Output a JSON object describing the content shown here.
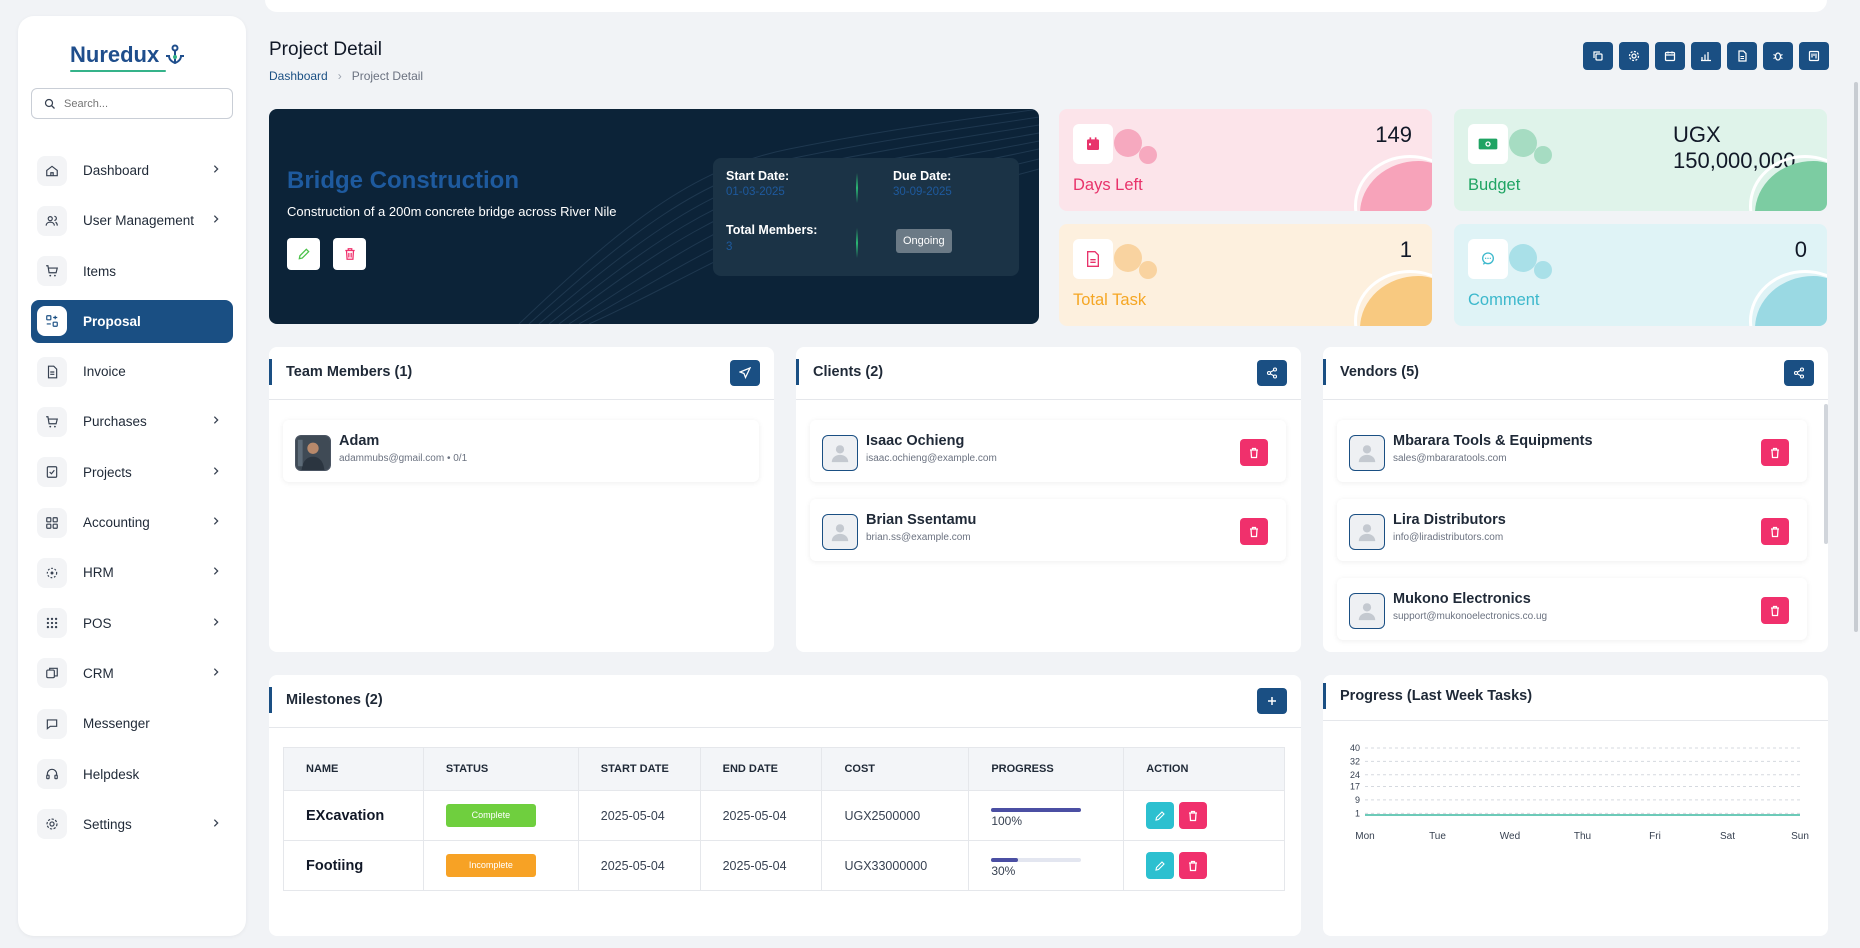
{
  "app": {
    "logo_text": "Nuredux",
    "brand_color": "#1a4f83",
    "accent_color": "#35b38a"
  },
  "search": {
    "placeholder": "Search..."
  },
  "sidebar": {
    "items": [
      {
        "label": "Dashboard",
        "icon": "home-icon",
        "has_children": true
      },
      {
        "label": "User Management",
        "icon": "users-icon",
        "has_children": true
      },
      {
        "label": "Items",
        "icon": "cart-icon",
        "has_children": false
      },
      {
        "label": "Proposal",
        "icon": "proposal-icon",
        "has_children": false,
        "active": true
      },
      {
        "label": "Invoice",
        "icon": "invoice-icon",
        "has_children": false
      },
      {
        "label": "Purchases",
        "icon": "cart-icon",
        "has_children": true
      },
      {
        "label": "Projects",
        "icon": "checklist-icon",
        "has_children": true
      },
      {
        "label": "Accounting",
        "icon": "grid-icon",
        "has_children": true
      },
      {
        "label": "HRM",
        "icon": "hrm-icon",
        "has_children": true
      },
      {
        "label": "POS",
        "icon": "dots-grid-icon",
        "has_children": true
      },
      {
        "label": "CRM",
        "icon": "crm-icon",
        "has_children": true
      },
      {
        "label": "Messenger",
        "icon": "chat-icon",
        "has_children": false
      },
      {
        "label": "Helpdesk",
        "icon": "headset-icon",
        "has_children": false
      },
      {
        "label": "Settings",
        "icon": "gear-icon",
        "has_children": true
      }
    ]
  },
  "header": {
    "title": "Project Detail",
    "breadcrumb": {
      "home": "Dashboard",
      "current": "Project Detail"
    },
    "toolbar_icons": [
      "copy-icon",
      "settings-icon",
      "calendar-icon",
      "chart-icon",
      "file-icon",
      "bug-icon",
      "kanban-icon"
    ]
  },
  "project": {
    "title": "Bridge Construction",
    "description": "Construction of a 200m concrete bridge across River Nile",
    "start_label": "Start Date:",
    "start_date": "01-03-2025",
    "due_label": "Due Date:",
    "due_date": "30-09-2025",
    "members_label": "Total Members:",
    "members_count": "3",
    "status": "Ongoing"
  },
  "stats": {
    "days_left": {
      "value": "149",
      "label": "Days Left",
      "color": "#e8336b",
      "bg": "#fce4ea"
    },
    "budget": {
      "value": "UGX 150,000,000",
      "label": "Budget",
      "color": "#1fa463",
      "bg": "#dff3ea"
    },
    "total_task": {
      "value": "1",
      "label": "Total Task",
      "color": "#f5a623",
      "bg": "#fdf0de"
    },
    "comment": {
      "value": "0",
      "label": "Comment",
      "color": "#3cb8cc",
      "bg": "#dff3f6"
    }
  },
  "team": {
    "title": "Team Members (1)",
    "members": [
      {
        "name": "Adam",
        "email": "adammubs@gmail.com • 0/1"
      }
    ]
  },
  "clients": {
    "title": "Clients (2)",
    "items": [
      {
        "name": "Isaac Ochieng",
        "email": "isaac.ochieng@example.com"
      },
      {
        "name": "Brian Ssentamu",
        "email": "brian.ss@example.com"
      }
    ]
  },
  "vendors": {
    "title": "Vendors (5)",
    "items": [
      {
        "name": "Mbarara Tools & Equipments",
        "email": "sales@mbararatools.com"
      },
      {
        "name": "Lira Distributors",
        "email": "info@liradistributors.com"
      },
      {
        "name": "Mukono Electronics",
        "email": "support@mukonoelectronics.co.ug"
      }
    ]
  },
  "milestones": {
    "title": "Milestones (2)",
    "columns": [
      "NAME",
      "STATUS",
      "START DATE",
      "END DATE",
      "COST",
      "PROGRESS",
      "ACTION"
    ],
    "rows": [
      {
        "name": "EXcavation",
        "status": "Complete",
        "status_color": "#6fcf3e",
        "start": "2025-05-04",
        "end": "2025-05-04",
        "cost": "UGX2500000",
        "progress": 100,
        "progress_label": "100%"
      },
      {
        "name": "Footiing",
        "status": "Incomplete",
        "status_color": "#f7a225",
        "start": "2025-05-04",
        "end": "2025-05-04",
        "cost": "UGX33000000",
        "progress": 30,
        "progress_label": "30%"
      }
    ]
  },
  "chart_data": {
    "type": "line",
    "title": "Progress (Last Week Tasks)",
    "categories": [
      "Mon",
      "Tue",
      "Wed",
      "Thu",
      "Fri",
      "Sat",
      "Sun"
    ],
    "y_ticks": [
      1,
      9,
      17,
      24,
      32,
      40
    ],
    "ylim": [
      0,
      40
    ],
    "series": [
      {
        "values": [
          0,
          0,
          0,
          0,
          0,
          0,
          0
        ],
        "color": "#3cb8a0"
      }
    ],
    "grid": true
  }
}
